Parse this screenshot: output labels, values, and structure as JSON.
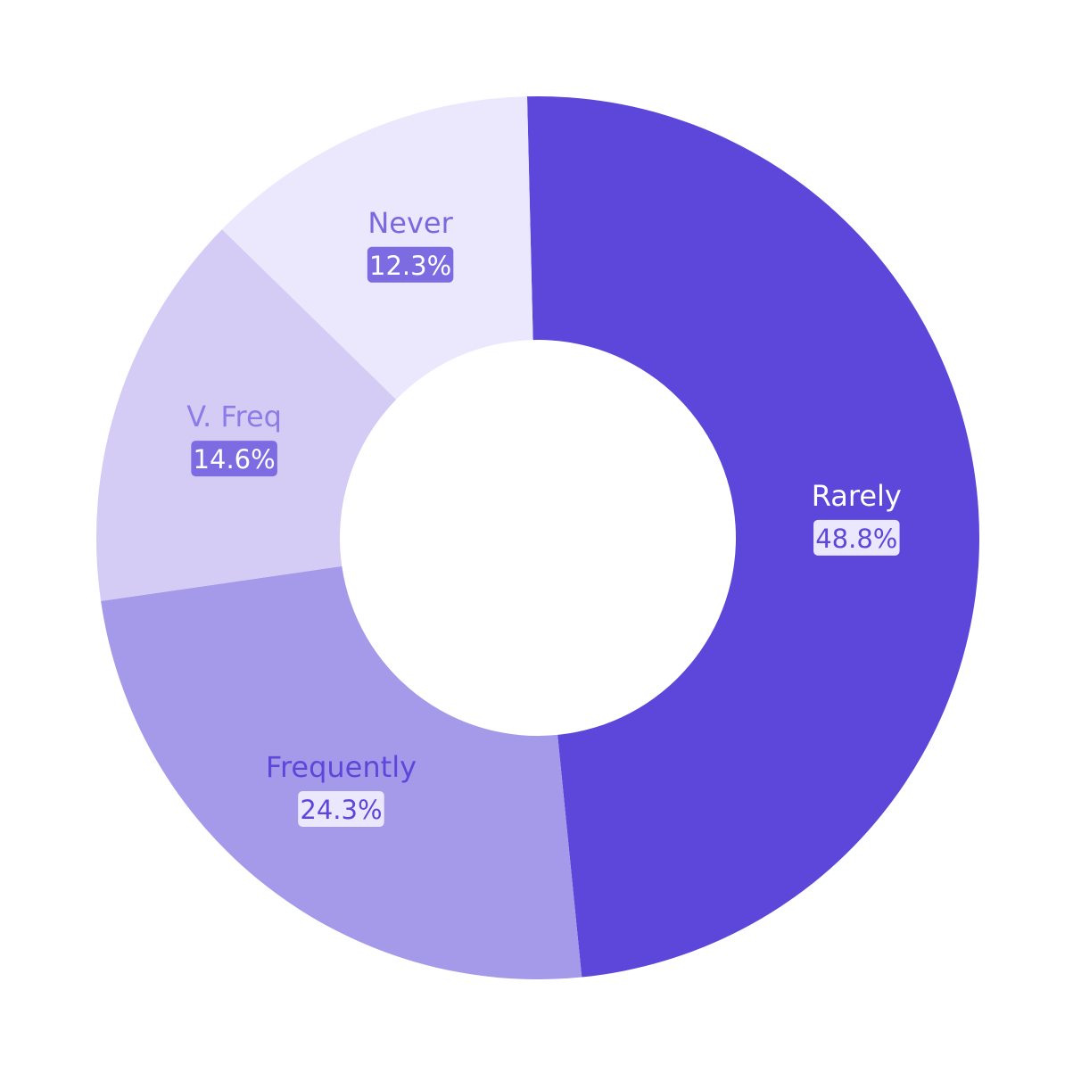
{
  "chart_data": {
    "type": "pie",
    "donut": true,
    "categories": [
      "Rarely",
      "Frequently",
      "V. Freq",
      "Never"
    ],
    "values": [
      48.8,
      24.3,
      14.6,
      12.3
    ],
    "value_labels": [
      "48.8%",
      "24.3%",
      "14.6%",
      "12.3%"
    ],
    "unit": "%",
    "colors": [
      "#5D47DA",
      "#A599EA",
      "#D4CCF5",
      "#EBE7FD"
    ],
    "label_colors": [
      "#FFFFFF",
      "#5D47DA",
      "#8C7CE6",
      "#7A68E0"
    ],
    "badge_colors": [
      "#EBE7FD",
      "#EBE7FD",
      "#7D6BE2",
      "#7D6BE2"
    ],
    "badge_text_colors": [
      "#5D47DA",
      "#5D47DA",
      "#FFFFFF",
      "#FFFFFF"
    ],
    "legend": "none"
  }
}
